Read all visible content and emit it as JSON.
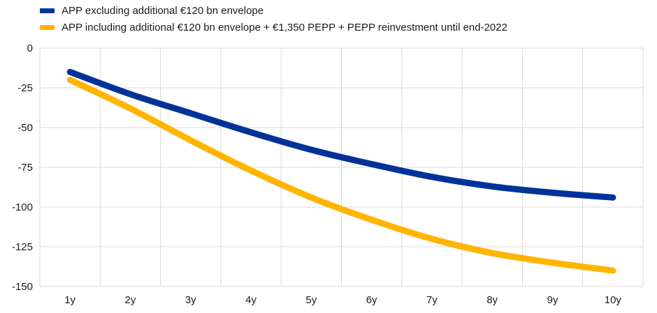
{
  "colors": {
    "series_blue": "#003299",
    "series_yellow": "#FFB400",
    "grid": "#d9d9d9",
    "text": "#1a1a1a",
    "background": "#ffffff"
  },
  "legend": {
    "items": [
      {
        "label": "APP excluding additional €120 bn envelope",
        "color": "#003299"
      },
      {
        "label": "APP including additional €120 bn envelope + €1,350 PEPP + PEPP reinvestment until end-2022",
        "color": "#FFB400"
      }
    ]
  },
  "chart_data": {
    "type": "line",
    "title": "",
    "xlabel": "",
    "ylabel": "",
    "categories": [
      "1y",
      "2y",
      "3y",
      "4y",
      "5y",
      "6y",
      "7y",
      "8y",
      "9y",
      "10y"
    ],
    "series": [
      {
        "name": "APP excluding additional €120 bn envelope",
        "color": "#003299",
        "values": [
          -15,
          -29,
          -41,
          -53,
          -64,
          -73,
          -81,
          -87,
          -91,
          -94
        ]
      },
      {
        "name": "APP including additional €120 bn envelope + €1,350 PEPP + PEPP reinvestment until end-2022",
        "color": "#FFB400",
        "values": [
          -20,
          -38,
          -58,
          -77,
          -94,
          -108,
          -120,
          -129,
          -135,
          -140
        ]
      }
    ],
    "ylim": [
      -150,
      0
    ],
    "yticks": [
      0,
      -25,
      -50,
      -75,
      -100,
      -125,
      -150
    ],
    "grid": true,
    "legend_position": "top-left"
  }
}
